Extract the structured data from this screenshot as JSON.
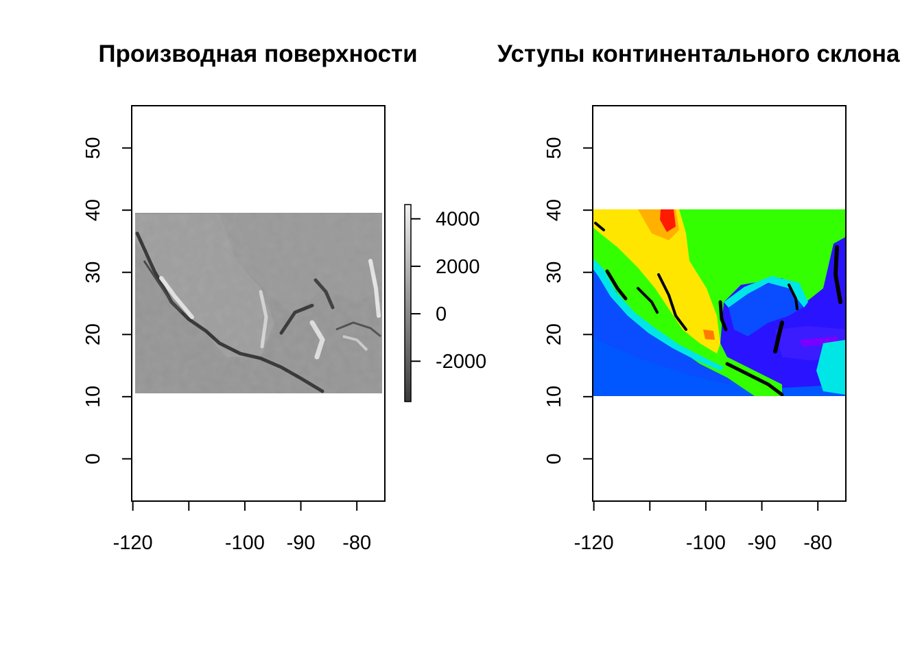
{
  "panels": [
    {
      "title": "Производная поверхности",
      "x_ticks": [
        -120,
        -110,
        -100,
        -90,
        -80
      ],
      "x_tick_labels": [
        "-120",
        "",
        "-100",
        "-90",
        "-80"
      ],
      "y_ticks": [
        0,
        10,
        20,
        30,
        40,
        50
      ],
      "y_tick_labels": [
        "0",
        "10",
        "20",
        "30",
        "40",
        "50"
      ],
      "xlim": [
        -120.2,
        -75
      ],
      "ylim": [
        -6.8,
        56.8
      ],
      "raster_extent": {
        "x": [
          -120,
          -75.5
        ],
        "y": [
          10.5,
          39.5
        ]
      },
      "palette": "grayscale",
      "legend": {
        "range": [
          -3700,
          4600
        ],
        "ticks": [
          4000,
          2000,
          0,
          -2000
        ],
        "tick_labels": [
          "4000",
          "2000",
          "0",
          "-2000"
        ]
      }
    },
    {
      "title": "Уступы континентального склона",
      "x_ticks": [
        -120,
        -110,
        -100,
        -90,
        -80
      ],
      "x_tick_labels": [
        "-120",
        "",
        "-100",
        "-90",
        "-80"
      ],
      "y_ticks": [
        0,
        10,
        20,
        30,
        40,
        50
      ],
      "y_tick_labels": [
        "0",
        "10",
        "20",
        "30",
        "40",
        "50"
      ],
      "xlim": [
        -120.2,
        -75
      ],
      "ylim": [
        -6.8,
        56.8
      ],
      "raster_extent": {
        "x": [
          -120.2,
          -75
        ],
        "y": [
          10,
          40
        ]
      },
      "palette": "rainbow",
      "colors": {
        "land": "#33ff00",
        "shelf": "#00e6e6",
        "slope": "#0057ff",
        "deep": "#2a14ff",
        "abyss": "#7a00ff",
        "highland": "#ffe600",
        "peak": "#ff1a00",
        "scarp": "#000000"
      }
    }
  ]
}
